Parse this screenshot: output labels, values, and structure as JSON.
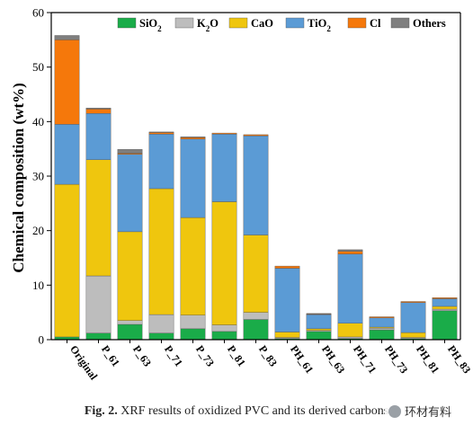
{
  "chart_data": {
    "type": "bar",
    "stacked": true,
    "categories": [
      "Original",
      "P_61",
      "P_63",
      "P_71",
      "P_73",
      "P_81",
      "P_83",
      "PH_61",
      "PH_63",
      "PH_71",
      "PH_73",
      "PH_81",
      "PH_83"
    ],
    "series": [
      {
        "name": "SiO2",
        "label_main": "SiO",
        "label_sub": "2",
        "label_tail": "",
        "color": "#1aac49",
        "values": [
          0.5,
          1.2,
          2.8,
          1.2,
          2.0,
          1.5,
          3.7,
          0.2,
          1.5,
          0.2,
          1.8,
          0.2,
          5.3
        ]
      },
      {
        "name": "K2O",
        "label_main": "K",
        "label_sub": "2",
        "label_tail": "O",
        "color": "#bdbdbd",
        "values": [
          0.0,
          10.5,
          0.7,
          3.4,
          2.5,
          1.2,
          1.3,
          0.2,
          0.2,
          0.3,
          0.3,
          0.2,
          0.3
        ]
      },
      {
        "name": "CaO",
        "label_main": "CaO",
        "label_sub": "",
        "label_tail": "",
        "color": "#efc60e",
        "values": [
          28.0,
          21.3,
          16.3,
          23.1,
          17.9,
          22.6,
          14.2,
          1.0,
          0.3,
          2.5,
          0.2,
          0.9,
          0.5
        ]
      },
      {
        "name": "TiO2",
        "label_main": "TiO",
        "label_sub": "2",
        "label_tail": "",
        "color": "#5b9bd5",
        "values": [
          11.0,
          8.5,
          14.2,
          10.0,
          14.4,
          12.4,
          18.2,
          11.7,
          2.6,
          12.7,
          1.7,
          5.5,
          1.4
        ]
      },
      {
        "name": "Cl",
        "label_main": "Cl",
        "label_sub": "",
        "label_tail": "",
        "color": "#f5780b",
        "values": [
          15.5,
          0.8,
          0.2,
          0.3,
          0.3,
          0.2,
          0.2,
          0.4,
          0.1,
          0.5,
          0.2,
          0.2,
          0.2
        ]
      },
      {
        "name": "Others",
        "label_main": "Others",
        "label_sub": "",
        "label_tail": "",
        "color": "#7f7f7f",
        "values": [
          0.8,
          0.2,
          0.7,
          0.1,
          0.1,
          0.0,
          0.0,
          0.0,
          0.1,
          0.3,
          0.0,
          0.0,
          0.0
        ]
      }
    ],
    "ylabel": "Chemical composition (wt%)",
    "ylim": [
      0,
      60
    ],
    "yticks": [
      0,
      10,
      20,
      30,
      40,
      50,
      60
    ],
    "legend_position": "top-right",
    "grid": false
  },
  "caption": {
    "bold": "Fig. 2.",
    "text": " XRF results of oxidized PVC and its derived carbons"
  },
  "watermark": {
    "text": "环材有料",
    "icon": "wechat-logo-icon"
  }
}
